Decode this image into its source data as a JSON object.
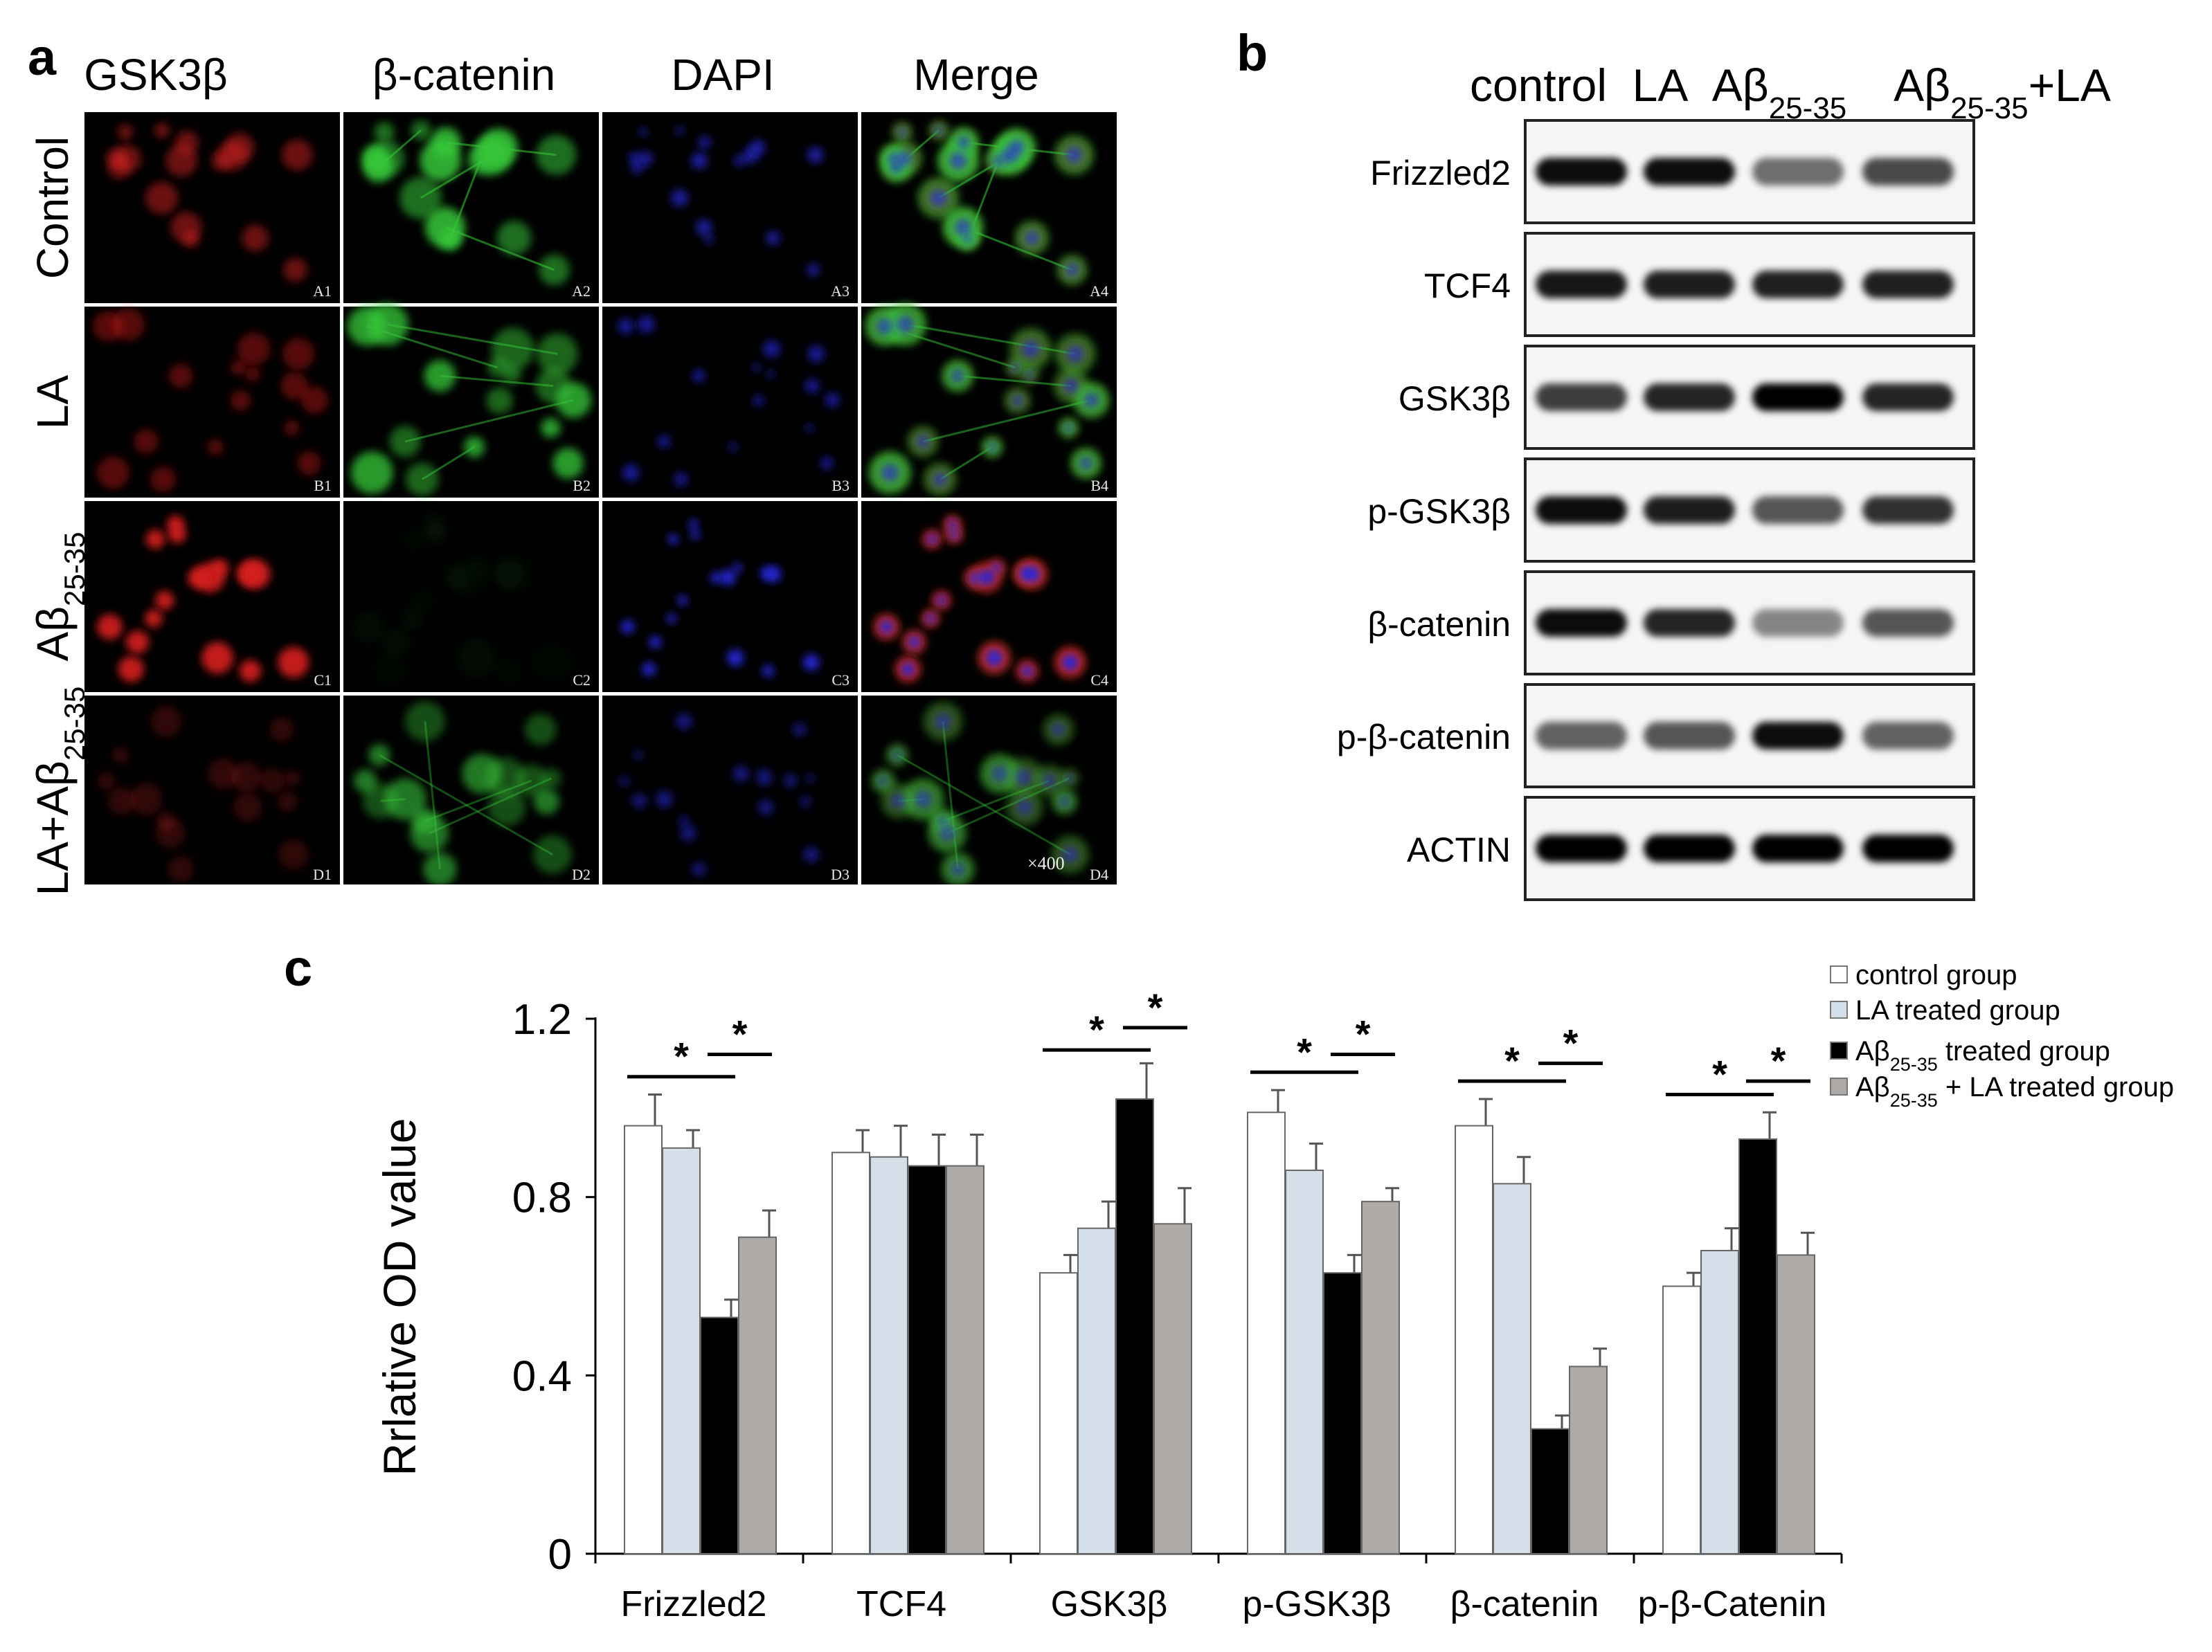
{
  "panel_a": {
    "letter": "a",
    "columns": [
      {
        "label": "GSK3β",
        "channel": "red",
        "color": "#d81e1e"
      },
      {
        "label": "β-catenin",
        "channel": "green",
        "color": "#36c83a"
      },
      {
        "label": "DAPI",
        "channel": "blue",
        "color": "#2626d8"
      },
      {
        "label": "Merge",
        "channel": "merge",
        "color": "#c8c83a"
      }
    ],
    "rows": [
      {
        "label": "Control",
        "sub": "",
        "tail": "",
        "intensity": {
          "red": 0.55,
          "green": 1.0,
          "blue": 0.55
        }
      },
      {
        "label": "LA",
        "sub": "",
        "tail": "",
        "intensity": {
          "red": 0.45,
          "green": 0.9,
          "blue": 0.5
        }
      },
      {
        "label": "Aβ",
        "sub": "25-35",
        "tail": "",
        "intensity": {
          "red": 1.0,
          "green": 0.06,
          "blue": 0.95
        }
      },
      {
        "label": "LA+Aβ",
        "sub": "25-35",
        "tail": "",
        "intensity": {
          "red": 0.25,
          "green": 0.7,
          "blue": 0.35
        }
      }
    ],
    "cell_labels": [
      [
        "A1",
        "A2",
        "A3",
        "A4"
      ],
      [
        "B1",
        "B2",
        "B3",
        "B4"
      ],
      [
        "C1",
        "C2",
        "C3",
        "C4"
      ],
      [
        "D1",
        "D2",
        "D3",
        "D4"
      ]
    ],
    "magnification": "×400"
  },
  "panel_b": {
    "letter": "b",
    "lanes": [
      {
        "label": "control",
        "sub": "",
        "tail": ""
      },
      {
        "label": "LA",
        "sub": "",
        "tail": ""
      },
      {
        "label": "Aβ",
        "sub": "25-35",
        "tail": ""
      },
      {
        "label": "Aβ",
        "sub": "25-35",
        "tail": "+LA"
      }
    ],
    "blots": [
      {
        "label": "Frizzled2",
        "intensities": [
          0.95,
          0.95,
          0.55,
          0.7
        ]
      },
      {
        "label": "TCF4",
        "intensities": [
          0.9,
          0.88,
          0.87,
          0.87
        ]
      },
      {
        "label": "GSK3β",
        "intensities": [
          0.75,
          0.85,
          1.0,
          0.85
        ]
      },
      {
        "label": "p-GSK3β",
        "intensities": [
          0.95,
          0.88,
          0.65,
          0.8
        ]
      },
      {
        "label": "β-catenin",
        "intensities": [
          0.95,
          0.85,
          0.45,
          0.65
        ]
      },
      {
        "label": "p-β-catenin",
        "intensities": [
          0.6,
          0.65,
          0.95,
          0.6
        ]
      },
      {
        "label": "ACTIN",
        "intensities": [
          1.0,
          1.0,
          1.0,
          1.0
        ]
      }
    ]
  },
  "panel_c": {
    "letter": "c",
    "chart_data": {
      "type": "bar",
      "ylabel": "Rrlative OD value",
      "ylim": [
        0,
        1.2
      ],
      "yticks": [
        "0",
        "0.4",
        "0.8",
        "1.2"
      ],
      "categories": [
        "Frizzled2",
        "TCF4",
        "GSK3β",
        "p-GSK3β",
        "β-catenin",
        "p-β-Catenin"
      ],
      "series": [
        {
          "name": "control group",
          "name_parts": [
            "control group",
            "",
            ""
          ],
          "color": "#ffffff",
          "values": [
            0.96,
            0.9,
            0.63,
            0.99,
            0.96,
            0.6
          ],
          "errors": [
            0.07,
            0.05,
            0.04,
            0.05,
            0.06,
            0.03
          ]
        },
        {
          "name": "LA treated group",
          "name_parts": [
            "LA treated group",
            "",
            ""
          ],
          "color": "#d5dfe9",
          "values": [
            0.91,
            0.89,
            0.73,
            0.86,
            0.83,
            0.68
          ],
          "errors": [
            0.04,
            0.07,
            0.06,
            0.06,
            0.06,
            0.05
          ]
        },
        {
          "name": "Aβ25-35 treated group",
          "name_parts": [
            "Aβ",
            "25-35",
            "  treated group"
          ],
          "color": "#000000",
          "values": [
            0.53,
            0.87,
            1.02,
            0.63,
            0.28,
            0.93
          ],
          "errors": [
            0.04,
            0.07,
            0.08,
            0.04,
            0.03,
            0.06
          ]
        },
        {
          "name": "Aβ25-35 + LA treated group",
          "name_parts": [
            "Aβ",
            "25-35",
            " + LA  treated group"
          ],
          "color": "#aeaaa7",
          "values": [
            0.71,
            0.87,
            0.74,
            0.79,
            0.42,
            0.67
          ],
          "errors": [
            0.06,
            0.07,
            0.08,
            0.03,
            0.04,
            0.05
          ]
        }
      ],
      "significance": [
        {
          "category": 0,
          "between": [
            0,
            2
          ],
          "level": 1.07,
          "mark": "*"
        },
        {
          "category": 0,
          "between": [
            2,
            3
          ],
          "level": 1.12,
          "mark": "*"
        },
        {
          "category": 2,
          "between": [
            0,
            2
          ],
          "level": 1.13,
          "mark": "*"
        },
        {
          "category": 2,
          "between": [
            2,
            3
          ],
          "level": 1.18,
          "mark": "*"
        },
        {
          "category": 3,
          "between": [
            0,
            2
          ],
          "level": 1.08,
          "mark": "*"
        },
        {
          "category": 3,
          "between": [
            2,
            3
          ],
          "level": 1.12,
          "mark": "*"
        },
        {
          "category": 4,
          "between": [
            0,
            2
          ],
          "level": 1.06,
          "mark": "*"
        },
        {
          "category": 4,
          "between": [
            2,
            3
          ],
          "level": 1.1,
          "mark": "*"
        },
        {
          "category": 5,
          "between": [
            0,
            2
          ],
          "level": 1.03,
          "mark": "*"
        },
        {
          "category": 5,
          "between": [
            2,
            3
          ],
          "level": 1.06,
          "mark": "*"
        }
      ],
      "legend_position": "top-right"
    }
  }
}
